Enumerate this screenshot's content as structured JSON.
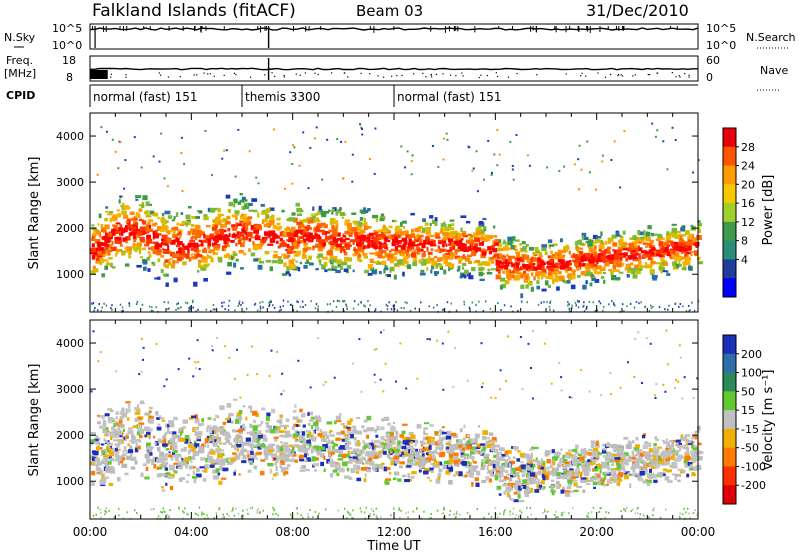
{
  "header": {
    "title": "Falkland Islands (fitACF)",
    "beam": "Beam 03",
    "date": "31/Dec/2010"
  },
  "nsky_panel": {
    "left_label": "N.Sky",
    "right_label": "N.Search",
    "left_ticks": [
      "10^5",
      "10^0"
    ],
    "right_ticks": [
      "10^5",
      "10^0"
    ]
  },
  "freq_panel": {
    "left_label_1": "Freq.",
    "left_label_2": "[MHz]",
    "right_label": "Nave",
    "left_ticks": [
      "18",
      "8"
    ],
    "right_ticks": [
      "60",
      "0"
    ]
  },
  "cpid_panel": {
    "label": "CPID",
    "segments": [
      {
        "name": "normal (fast) 151",
        "start_hour": 0,
        "end_hour": 6
      },
      {
        "name": "themis 3300",
        "start_hour": 6,
        "end_hour": 12
      },
      {
        "name": "normal (fast) 151",
        "start_hour": 12,
        "end_hour": 24
      }
    ]
  },
  "chart_data": [
    {
      "type": "heatmap",
      "title": "",
      "xlabel": "Time UT",
      "ylabel": "Slant Range [km]",
      "xlim": [
        0,
        24
      ],
      "ylim": [
        180,
        4500
      ],
      "x_ticks": [
        "00:00",
        "04:00",
        "08:00",
        "12:00",
        "16:00",
        "20:00",
        "00:00"
      ],
      "y_ticks": [
        1000,
        2000,
        3000,
        4000
      ],
      "colorbar": {
        "label": "Power [dB]",
        "ticks": [
          "28",
          "24",
          "20",
          "16",
          "12",
          "8",
          "4"
        ],
        "colors": [
          "#e8000b",
          "#ff5500",
          "#ff9c00",
          "#f5c800",
          "#9fcf2a",
          "#3c9a4a",
          "#2b8c78",
          "#203c9c",
          "#0000ff"
        ]
      }
    },
    {
      "type": "heatmap",
      "title": "",
      "xlabel": "Time UT",
      "ylabel": "Slant Range [km]",
      "xlim": [
        0,
        24
      ],
      "ylim": [
        180,
        4500
      ],
      "x_ticks": [
        "00:00",
        "04:00",
        "08:00",
        "12:00",
        "16:00",
        "20:00",
        "00:00"
      ],
      "y_ticks": [
        1000,
        2000,
        3000,
        4000
      ],
      "colorbar": {
        "label": "Velocity [m s⁻¹]",
        "ticks": [
          "200",
          "100",
          "50",
          "15",
          "-15",
          "-50",
          "-100",
          "-200"
        ],
        "colors": [
          "#1c2fb8",
          "#2e6ea8",
          "#2a8a5a",
          "#62c832",
          "#c0c0c0",
          "#f0b000",
          "#ff7a00",
          "#ff3000",
          "#e0000a"
        ]
      }
    }
  ],
  "x_axis_label": "Time UT"
}
